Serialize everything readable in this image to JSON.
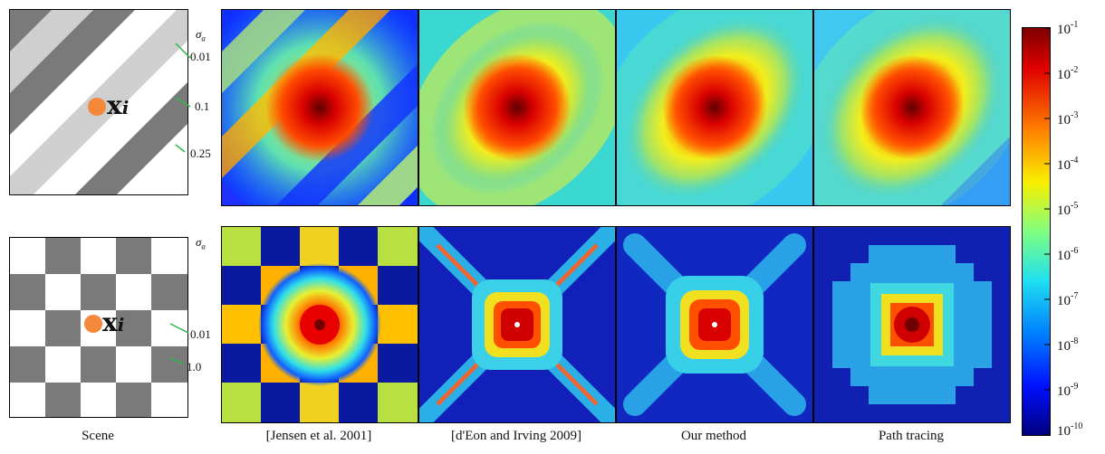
{
  "captions": {
    "scene": "Scene",
    "jensen": "[Jensen et al. 2001]",
    "deon": "[d'Eon and Irving 2009]",
    "ours": "Our method",
    "path": "Path tracing"
  },
  "point_label": "x",
  "point_subscript": "i",
  "sigma_symbol": "σ",
  "sigma_subscript": "a",
  "row1_ticks": [
    "0.01",
    "0.1",
    "0.25"
  ],
  "row2_ticks": [
    "0.01",
    "1.0"
  ],
  "colorbar": {
    "base": "10",
    "exponents": [
      "-1",
      "-2",
      "-3",
      "-4",
      "-5",
      "-6",
      "-7",
      "-8",
      "-9",
      "-10"
    ]
  },
  "colors": {
    "point": "#f5883b",
    "leader": "#2db84a",
    "stripe_dark": "#7a7a7a",
    "stripe_light": "#cfcfcf",
    "checker_dark": "#7a7a7a"
  }
}
